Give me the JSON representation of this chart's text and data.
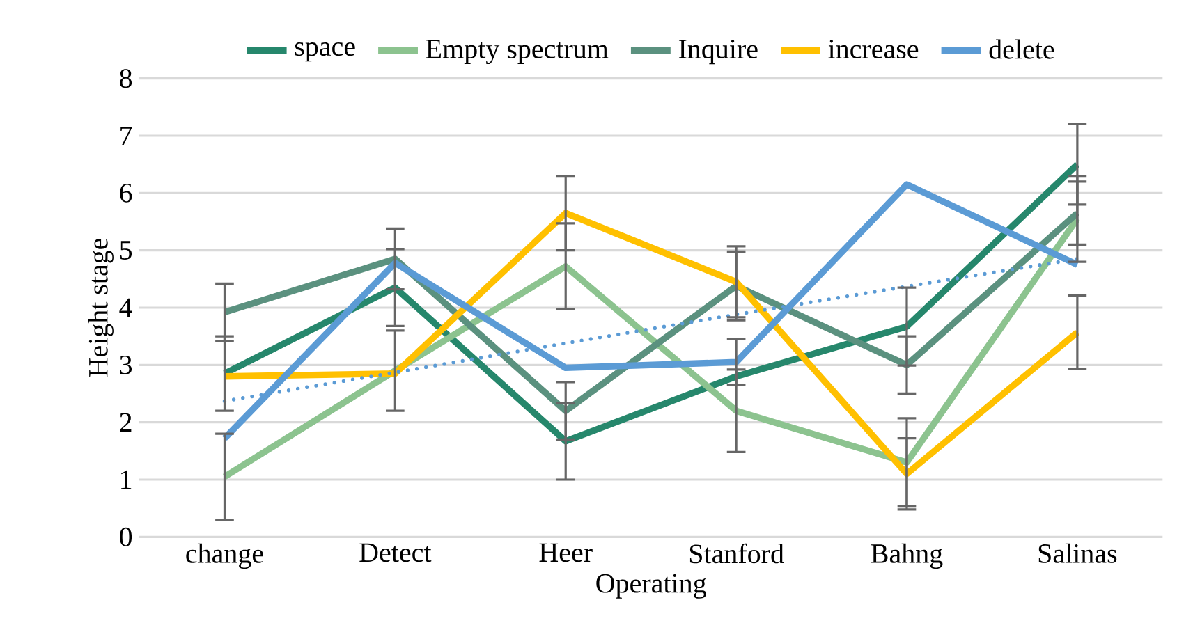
{
  "chart_data": {
    "type": "line",
    "xlabel": "Operating",
    "ylabel": "Height stage",
    "categories": [
      "change",
      "Detect",
      "Heer",
      "Stanford",
      "Bahng",
      "Salinas"
    ],
    "ylim": [
      0,
      8
    ],
    "yticks": [
      0,
      1,
      2,
      3,
      4,
      5,
      6,
      7,
      8
    ],
    "grid": "y",
    "legend": "top",
    "series": [
      {
        "name": "space",
        "color": "#26876c",
        "line_style": "solid",
        "values": [
          2.85,
          4.35,
          1.67,
          2.8,
          3.67,
          6.5
        ],
        "errors": [
          0.65,
          0.67,
          0.67,
          null,
          0.68,
          0.7
        ]
      },
      {
        "name": "Empty spectrum",
        "color": "#8cc38f",
        "line_style": "solid",
        "values": [
          1.05,
          2.9,
          4.72,
          2.2,
          1.3,
          5.55
        ],
        "errors": [
          0.75,
          0.7,
          0.75,
          0.72,
          0.77,
          0.75
        ]
      },
      {
        "name": "Inquire",
        "color": "#5b917f",
        "line_style": "solid",
        "values": [
          3.92,
          4.85,
          2.2,
          4.38,
          3.0,
          5.65
        ],
        "errors": [
          0.5,
          0.53,
          0.5,
          0.6,
          0.5,
          0.55
        ]
      },
      {
        "name": "increase",
        "color": "#ffc000",
        "line_style": "solid",
        "values": [
          2.8,
          2.85,
          5.65,
          4.45,
          1.1,
          3.57
        ],
        "errors": [
          null,
          null,
          0.65,
          0.62,
          0.62,
          0.64
        ]
      },
      {
        "name": "delete",
        "color": "#5b9bd5",
        "line_style": "solid",
        "values": [
          1.72,
          4.78,
          2.95,
          3.05,
          6.15,
          4.75
        ],
        "errors": [
          null,
          null,
          null,
          0.4,
          null,
          null
        ]
      },
      {
        "color": "#5b9bd5",
        "line_style": "dotted",
        "values": [
          2.37,
          2.87,
          3.38,
          3.88,
          4.37,
          4.85
        ]
      }
    ]
  }
}
